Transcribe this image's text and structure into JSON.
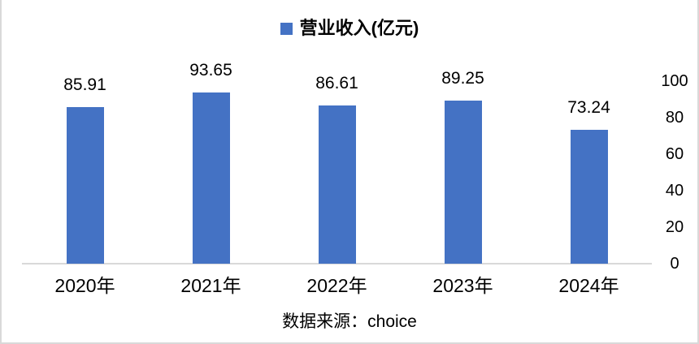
{
  "chart": {
    "legend": {
      "label": "营业收入(亿元)",
      "marker_color": "#4472C4"
    },
    "source": "数据来源：choice",
    "colors": {
      "bar": "#4472C4",
      "axis_line": "#D9D9D9",
      "text": "#000000",
      "background": "#FFFFFF"
    }
  },
  "chart_data": {
    "type": "bar",
    "title": "",
    "xlabel": "",
    "ylabel": "",
    "categories": [
      "2020年",
      "2021年",
      "2022年",
      "2023年",
      "2024年"
    ],
    "series": [
      {
        "name": "营业收入(亿元)",
        "values": [
          85.91,
          93.65,
          86.61,
          89.25,
          73.24
        ]
      }
    ],
    "data_labels": [
      "85.91",
      "93.65",
      "86.61",
      "89.25",
      "73.24"
    ],
    "ylim": [
      0,
      100
    ],
    "yticks": [
      0,
      20,
      40,
      60,
      80,
      100
    ],
    "yaxis_side": "right",
    "legend_position": "top",
    "grid": false,
    "annotation": "数据来源：choice"
  }
}
